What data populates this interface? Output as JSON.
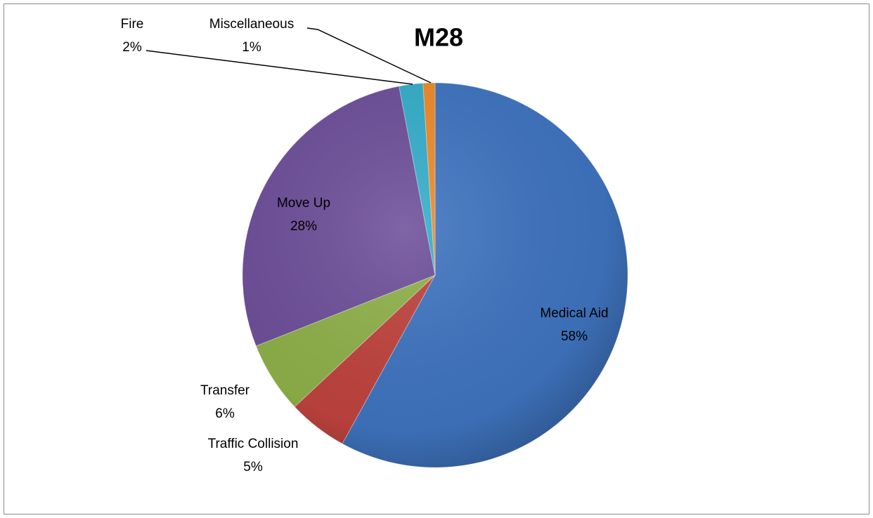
{
  "chart_data": {
    "type": "pie",
    "title": "M28",
    "categories": [
      "Medical Aid",
      "Traffic Collision",
      "Transfer",
      "Move Up",
      "Fire",
      "Miscellaneous"
    ],
    "values": [
      58,
      5,
      6,
      28,
      2,
      1
    ],
    "value_labels": [
      "58%",
      "5%",
      "6%",
      "28%",
      "2%",
      "1%"
    ],
    "colors": [
      "#3f74c0",
      "#c0433e",
      "#8fb14a",
      "#6e4f9a",
      "#35aecb",
      "#f08a28"
    ]
  }
}
